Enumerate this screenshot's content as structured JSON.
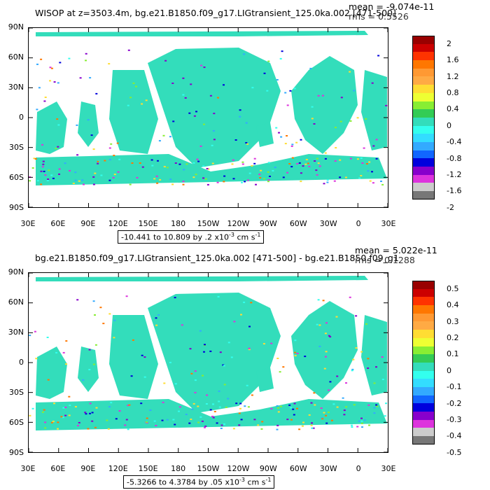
{
  "panels": [
    {
      "title": "WISOP at z=3503.4m, bg.e21.B1850.f09_g17.LIGtransient_125.0ka.002 [471-500]",
      "mean": "mean = -9.074e-11",
      "rms": "rms = 0.5526",
      "range_text": "-10.441 to 10.809 by .2 x10",
      "range_exp": "-3",
      "range_units": " cm s",
      "range_units_exp": "-1",
      "colorbar_labels": [
        "2",
        "1.6",
        "1.2",
        "0.8",
        "0.4",
        "0",
        "-0.4",
        "-0.8",
        "-1.2",
        "-1.6",
        "-2"
      ]
    },
    {
      "title": "bg.e21.B1850.f09_g17.LIGtransient_125.0ka.002 [471-500] - bg.e21.B1850.f09_g1",
      "mean": "mean = 5.022e-11",
      "rms": "rms = 0.1288",
      "range_text": "-5.3266 to 4.3784 by .05 x10",
      "range_exp": "-3",
      "range_units": " cm s",
      "range_units_exp": "-1",
      "colorbar_labels": [
        "0.5",
        "0.4",
        "0.3",
        "0.2",
        "0.1",
        "0",
        "-0.1",
        "-0.2",
        "-0.3",
        "-0.4",
        "-0.5"
      ]
    }
  ],
  "lat_labels": [
    "90N",
    "60N",
    "30N",
    "0",
    "30S",
    "60S",
    "90S"
  ],
  "lon_labels": [
    "30E",
    "60E",
    "90E",
    "120E",
    "150E",
    "180",
    "150W",
    "120W",
    "90W",
    "60W",
    "30W",
    "0",
    "30E"
  ],
  "colors": {
    "ocean": "#33ddbb",
    "colorbar": [
      "#990000",
      "#cc0000",
      "#ff3300",
      "#ff7700",
      "#ff9933",
      "#ffaa44",
      "#ffdd33",
      "#eeff33",
      "#88ee33",
      "#33cc55",
      "#33ddbb",
      "#33ffee",
      "#33ddff",
      "#33aaff",
      "#1166ff",
      "#0000dd",
      "#8800cc",
      "#dd33dd",
      "#cccccc",
      "#777777"
    ]
  }
}
